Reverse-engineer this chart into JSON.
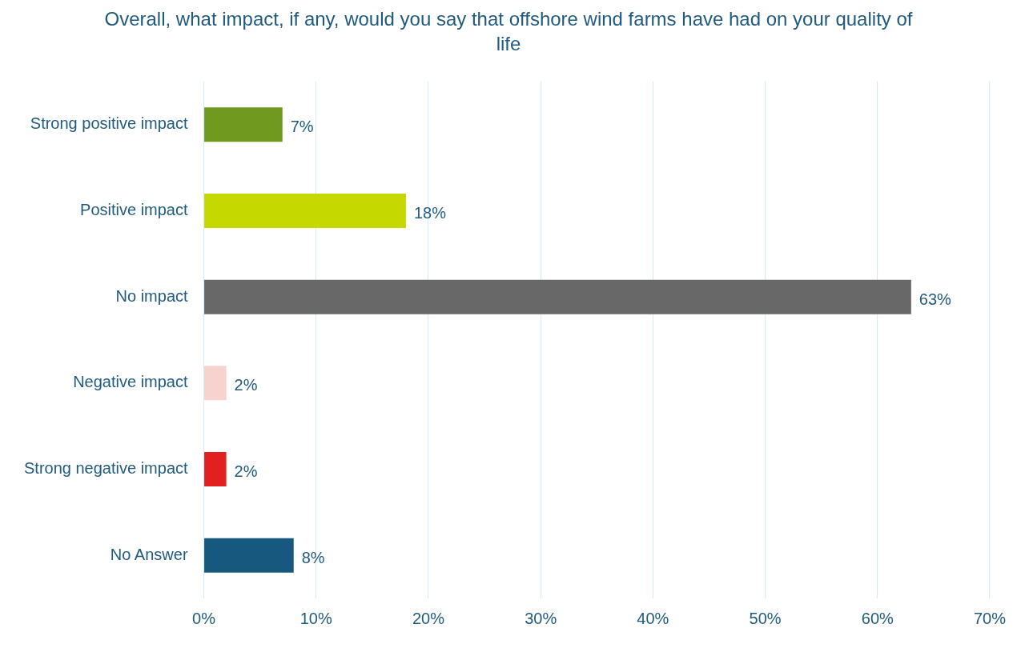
{
  "chart_data": {
    "type": "bar",
    "orientation": "horizontal",
    "title": "Overall, what impact, if any, would you say that offshore wind farms have had on your quality of life",
    "categories": [
      "Strong positive impact",
      "Positive impact",
      "No impact",
      "Negative impact",
      "Strong negative impact",
      "No Answer"
    ],
    "values": [
      7,
      18,
      63,
      2,
      2,
      8
    ],
    "colors": [
      "#6f991f",
      "#c5d800",
      "#686868",
      "#f7d3d0",
      "#e2201f",
      "#17587e"
    ],
    "value_labels": [
      "7%",
      "18%",
      "63%",
      "2%",
      "2%",
      "8%"
    ],
    "xlim": [
      0,
      70
    ],
    "xticks": [
      {
        "value": 0,
        "label": "0%"
      },
      {
        "value": 10,
        "label": "10%"
      },
      {
        "value": 20,
        "label": "20%"
      },
      {
        "value": 30,
        "label": "30%"
      },
      {
        "value": 40,
        "label": "40%"
      },
      {
        "value": 50,
        "label": "50%"
      },
      {
        "value": 60,
        "label": "60%"
      },
      {
        "value": 70,
        "label": "70%"
      }
    ],
    "grid": "x",
    "legend": false
  }
}
